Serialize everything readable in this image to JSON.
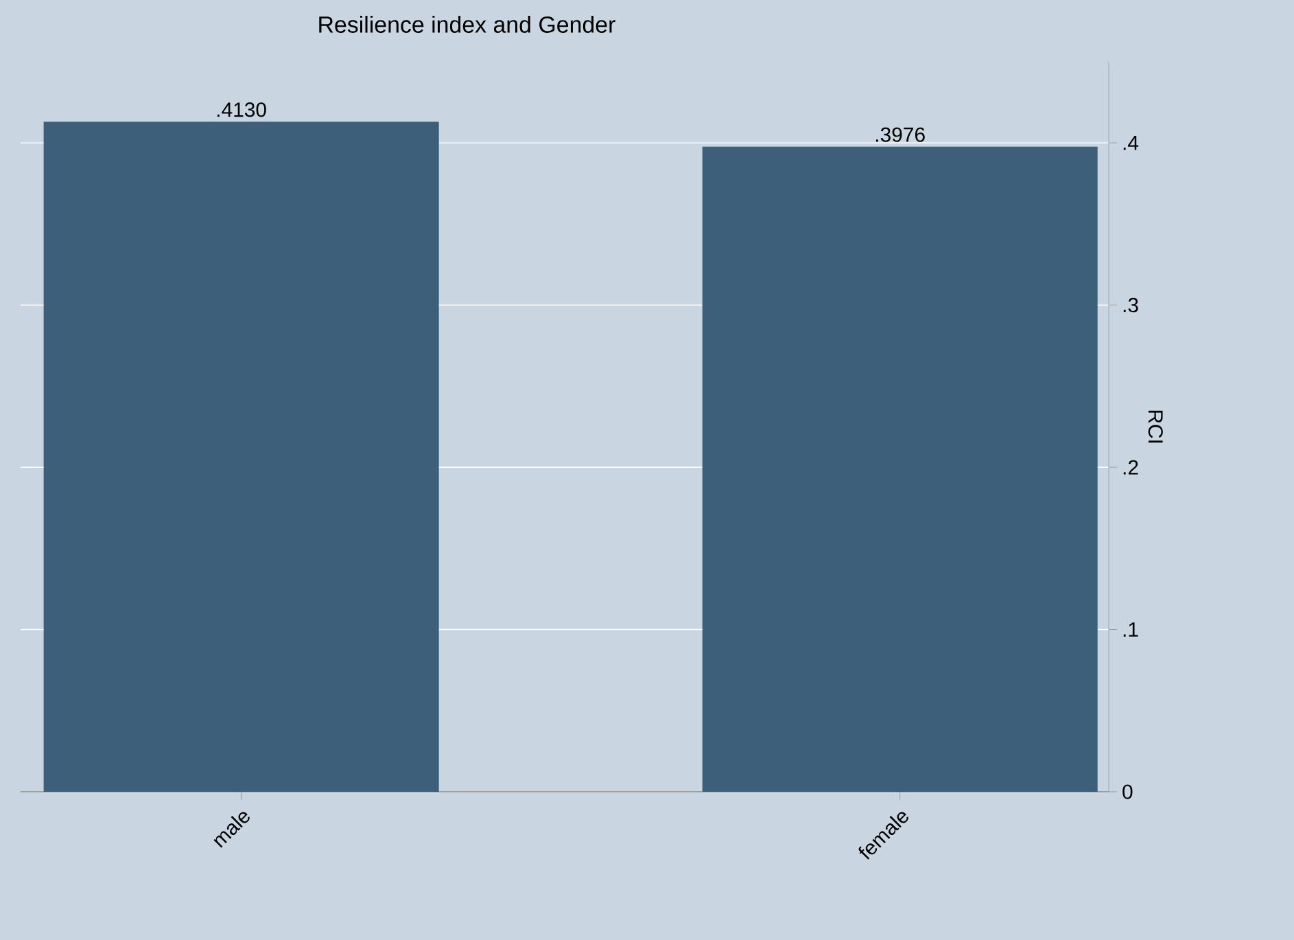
{
  "chart_data": {
    "type": "bar",
    "title": "Resilience index and Gender",
    "ylabel": "RCI",
    "categories": [
      "male",
      "female"
    ],
    "values": [
      0.413,
      0.3976
    ],
    "value_labels": [
      ".4130",
      ".3976"
    ],
    "color": "#3d5f7a",
    "ylim": [
      0,
      0.45
    ],
    "yticks": [
      {
        "value": 0,
        "label": "0"
      },
      {
        "value": 0.1,
        "label": ".1"
      },
      {
        "value": 0.2,
        "label": ".2"
      },
      {
        "value": 0.3,
        "label": ".3"
      },
      {
        "value": 0.4,
        "label": ".4"
      }
    ],
    "grid": "y"
  }
}
